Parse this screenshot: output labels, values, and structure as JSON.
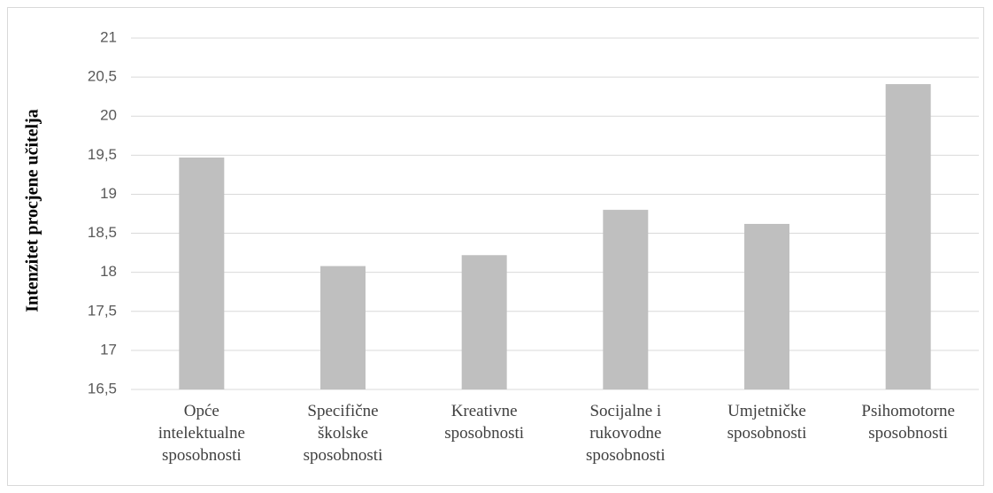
{
  "chart_data": {
    "type": "bar",
    "categories": [
      [
        "Opće",
        "intelektualne",
        "sposobnosti"
      ],
      [
        "Specifične",
        "školske",
        "sposobnosti"
      ],
      [
        "Kreativne",
        "sposobnosti"
      ],
      [
        "Socijalne i",
        "rukovodne",
        "sposobnosti"
      ],
      [
        "Umjetničke",
        "sposobnosti"
      ],
      [
        "Psihomotorne",
        "sposobnosti"
      ]
    ],
    "values": [
      19.47,
      18.08,
      18.22,
      18.8,
      18.62,
      20.41
    ],
    "ylabel": "Intenzitet procjene učitelja",
    "ylim": [
      16.5,
      21
    ],
    "yticks": [
      16.5,
      17,
      17.5,
      18,
      18.5,
      19,
      19.5,
      20,
      20.5,
      21
    ],
    "ytick_labels": [
      "16,5",
      "17",
      "17,5",
      "18",
      "18,5",
      "19",
      "19,5",
      "20",
      "20,5",
      "21"
    ],
    "grid": true,
    "bar_color": "#bfbfbf",
    "grid_color": "#d9d9d9"
  }
}
